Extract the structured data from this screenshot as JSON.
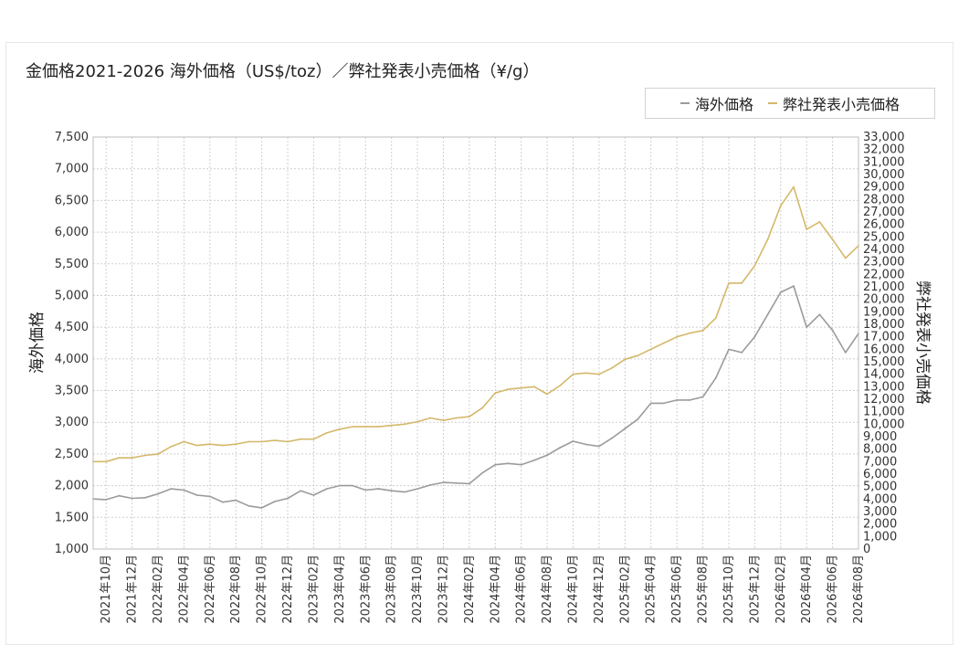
{
  "chart_data": {
    "type": "line",
    "title": "金価格2021-2026 海外価格（US$/toz）／弊社発表小売価格（¥/g）",
    "ylabel_left": "海外価格",
    "ylabel_right": "弊社発表小売価格",
    "ylim_left": [
      1000,
      7500
    ],
    "ylim_right": [
      0,
      33000
    ],
    "left_ticks": [
      "1,000",
      "1,500",
      "2,000",
      "2,500",
      "3,000",
      "3,500",
      "4,000",
      "4,500",
      "5,000",
      "5,500",
      "6,000",
      "6,500",
      "7,000",
      "7,500"
    ],
    "right_ticks": [
      "0",
      "1,000",
      "2,000",
      "3,000",
      "4,000",
      "5,000",
      "6,000",
      "7,000",
      "8,000",
      "9,000",
      "10,000",
      "11,000",
      "12,000",
      "13,000",
      "14,000",
      "15,000",
      "16,000",
      "17,000",
      "18,000",
      "19,000",
      "20,000",
      "21,000",
      "22,000",
      "23,000",
      "24,000",
      "25,000",
      "26,000",
      "27,000",
      "28,000",
      "29,000",
      "30,000",
      "31,000",
      "32,000",
      "33,000"
    ],
    "x_ticks": [
      "2021年10月",
      "2021年12月",
      "2022年02月",
      "2022年04月",
      "2022年06月",
      "2022年08月",
      "2022年10月",
      "2022年12月",
      "2023年02月",
      "2023年04月",
      "2023年06月",
      "2023年08月",
      "2023年10月",
      "2023年12月",
      "2024年02月",
      "2024年04月",
      "2024年06月",
      "2024年08月",
      "2024年10月",
      "2024年12月",
      "2025年02月",
      "2025年04月",
      "2025年06月",
      "2025年08月",
      "2025年10月",
      "2025年12月",
      "2026年02月",
      "2026年04月",
      "2026年06月",
      "2026年08月"
    ],
    "x_start": "2021-09",
    "x_end": "2026-08",
    "grid": true,
    "legend_position": "top-right",
    "series": [
      {
        "name": "海外価格",
        "axis": "left",
        "color": "#9b9b9b",
        "points": [
          [
            "2021-09",
            1790
          ],
          [
            "2021-10",
            1780
          ],
          [
            "2021-11",
            1840
          ],
          [
            "2021-12",
            1800
          ],
          [
            "2022-01",
            1810
          ],
          [
            "2022-02",
            1870
          ],
          [
            "2022-03",
            1950
          ],
          [
            "2022-04",
            1930
          ],
          [
            "2022-05",
            1850
          ],
          [
            "2022-06",
            1830
          ],
          [
            "2022-07",
            1740
          ],
          [
            "2022-08",
            1770
          ],
          [
            "2022-09",
            1680
          ],
          [
            "2022-10",
            1650
          ],
          [
            "2022-11",
            1750
          ],
          [
            "2022-12",
            1800
          ],
          [
            "2023-01",
            1920
          ],
          [
            "2023-02",
            1850
          ],
          [
            "2023-03",
            1950
          ],
          [
            "2023-04",
            2000
          ],
          [
            "2023-05",
            2000
          ],
          [
            "2023-06",
            1930
          ],
          [
            "2023-07",
            1950
          ],
          [
            "2023-08",
            1920
          ],
          [
            "2023-09",
            1900
          ],
          [
            "2023-10",
            1950
          ],
          [
            "2023-11",
            2010
          ],
          [
            "2023-12",
            2050
          ],
          [
            "2024-01",
            2040
          ],
          [
            "2024-02",
            2030
          ],
          [
            "2024-03",
            2200
          ],
          [
            "2024-04",
            2330
          ],
          [
            "2024-05",
            2350
          ],
          [
            "2024-06",
            2330
          ],
          [
            "2024-07",
            2400
          ],
          [
            "2024-08",
            2480
          ],
          [
            "2024-09",
            2600
          ],
          [
            "2024-10",
            2700
          ],
          [
            "2024-11",
            2650
          ],
          [
            "2024-12",
            2620
          ],
          [
            "2025-01",
            2750
          ],
          [
            "2025-02",
            2900
          ],
          [
            "2025-03",
            3050
          ],
          [
            "2025-04",
            3300
          ],
          [
            "2025-05",
            3300
          ],
          [
            "2025-06",
            3350
          ],
          [
            "2025-07",
            3350
          ],
          [
            "2025-08",
            3400
          ],
          [
            "2025-09",
            3700
          ],
          [
            "2025-10",
            4150
          ],
          [
            "2025-11",
            4100
          ],
          [
            "2025-12",
            4350
          ],
          [
            "2026-01",
            4700
          ],
          [
            "2026-02",
            5050
          ],
          [
            "2026-03",
            5150
          ],
          [
            "2026-04",
            4500
          ],
          [
            "2026-05",
            4700
          ],
          [
            "2026-06",
            4450
          ],
          [
            "2026-07",
            4100
          ],
          [
            "2026-08",
            4400
          ]
        ]
      },
      {
        "name": "弊社発表小売価格",
        "axis": "right",
        "color": "#d4b86a",
        "points": [
          [
            "2021-09",
            7000
          ],
          [
            "2021-10",
            7000
          ],
          [
            "2021-11",
            7300
          ],
          [
            "2021-12",
            7300
          ],
          [
            "2022-01",
            7500
          ],
          [
            "2022-02",
            7600
          ],
          [
            "2022-03",
            8200
          ],
          [
            "2022-04",
            8600
          ],
          [
            "2022-05",
            8300
          ],
          [
            "2022-06",
            8400
          ],
          [
            "2022-07",
            8300
          ],
          [
            "2022-08",
            8400
          ],
          [
            "2022-09",
            8600
          ],
          [
            "2022-10",
            8600
          ],
          [
            "2022-11",
            8700
          ],
          [
            "2022-12",
            8600
          ],
          [
            "2023-01",
            8800
          ],
          [
            "2023-02",
            8800
          ],
          [
            "2023-03",
            9300
          ],
          [
            "2023-04",
            9600
          ],
          [
            "2023-05",
            9800
          ],
          [
            "2023-06",
            9800
          ],
          [
            "2023-07",
            9800
          ],
          [
            "2023-08",
            9900
          ],
          [
            "2023-09",
            10000
          ],
          [
            "2023-10",
            10200
          ],
          [
            "2023-11",
            10500
          ],
          [
            "2023-12",
            10300
          ],
          [
            "2024-01",
            10500
          ],
          [
            "2024-02",
            10600
          ],
          [
            "2024-03",
            11300
          ],
          [
            "2024-04",
            12500
          ],
          [
            "2024-05",
            12800
          ],
          [
            "2024-06",
            12900
          ],
          [
            "2024-07",
            13000
          ],
          [
            "2024-08",
            12400
          ],
          [
            "2024-09",
            13100
          ],
          [
            "2024-10",
            14000
          ],
          [
            "2024-11",
            14100
          ],
          [
            "2024-12",
            14000
          ],
          [
            "2025-01",
            14500
          ],
          [
            "2025-02",
            15200
          ],
          [
            "2025-03",
            15500
          ],
          [
            "2025-04",
            16000
          ],
          [
            "2025-05",
            16500
          ],
          [
            "2025-06",
            17000
          ],
          [
            "2025-07",
            17300
          ],
          [
            "2025-08",
            17500
          ],
          [
            "2025-09",
            18500
          ],
          [
            "2025-10",
            21300
          ],
          [
            "2025-11",
            21300
          ],
          [
            "2025-12",
            22700
          ],
          [
            "2026-01",
            24800
          ],
          [
            "2026-02",
            27500
          ],
          [
            "2026-03",
            29000
          ],
          [
            "2026-04",
            25600
          ],
          [
            "2026-05",
            26200
          ],
          [
            "2026-06",
            24800
          ],
          [
            "2026-07",
            23300
          ],
          [
            "2026-08",
            24300
          ]
        ]
      }
    ]
  }
}
